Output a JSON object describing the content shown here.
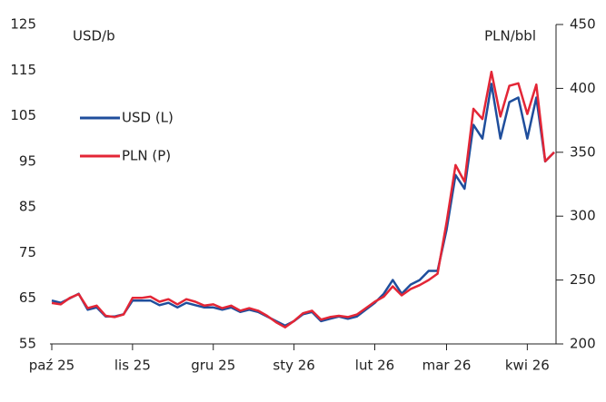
{
  "chart_data": {
    "type": "line",
    "y_label": "USD/b",
    "y2_label": "PLN/bbl",
    "categories": [
      "paź 25",
      null,
      null,
      null,
      null,
      null,
      null,
      null,
      null,
      "lis 25",
      null,
      null,
      null,
      null,
      null,
      null,
      null,
      null,
      "gru 25",
      null,
      null,
      null,
      null,
      null,
      null,
      null,
      null,
      "sty 26",
      null,
      null,
      null,
      null,
      null,
      null,
      null,
      null,
      "lut 26",
      null,
      null,
      null,
      null,
      null,
      null,
      null,
      "mar 26",
      null,
      null,
      null,
      null,
      null,
      null,
      null,
      null,
      "kwi 26",
      null,
      null,
      null
    ],
    "series": [
      {
        "name": "USD (L)",
        "color": "#1f4e9c",
        "axis": "y",
        "values": [
          64.5,
          64,
          65,
          66,
          62.5,
          63,
          61,
          61,
          61.5,
          64.5,
          64.5,
          64.5,
          63.5,
          64,
          63,
          64,
          63.5,
          63,
          63,
          62.5,
          63,
          62,
          62.5,
          62,
          61,
          60,
          59,
          60,
          61.5,
          62,
          60,
          60.5,
          61,
          60.5,
          61,
          62.5,
          64,
          66,
          69,
          66,
          68,
          69,
          71,
          71,
          80,
          92,
          89,
          103,
          100,
          112,
          100,
          108,
          109,
          100,
          109,
          95,
          97
        ]
      },
      {
        "name": "PLN (P)",
        "color": "#e32636",
        "axis": "y2",
        "values": [
          232,
          231,
          236,
          239,
          228,
          230,
          222,
          221,
          223,
          236,
          236,
          237,
          233,
          235,
          231,
          235,
          233,
          230,
          231,
          228,
          230,
          226,
          228,
          226,
          222,
          217,
          213,
          218,
          224,
          226,
          219,
          221,
          222,
          221,
          223,
          228,
          233,
          237,
          245,
          238,
          243,
          246,
          250,
          255,
          295,
          340,
          327,
          384,
          376,
          413,
          378,
          402,
          404,
          380,
          403,
          343,
          350
        ]
      }
    ],
    "ylim": [
      55,
      125
    ],
    "yticks": [
      55,
      65,
      75,
      85,
      95,
      105,
      115,
      125
    ],
    "y2lim": [
      200,
      450
    ],
    "y2ticks": [
      200,
      250,
      300,
      350,
      400,
      450
    ],
    "legend": "left"
  }
}
